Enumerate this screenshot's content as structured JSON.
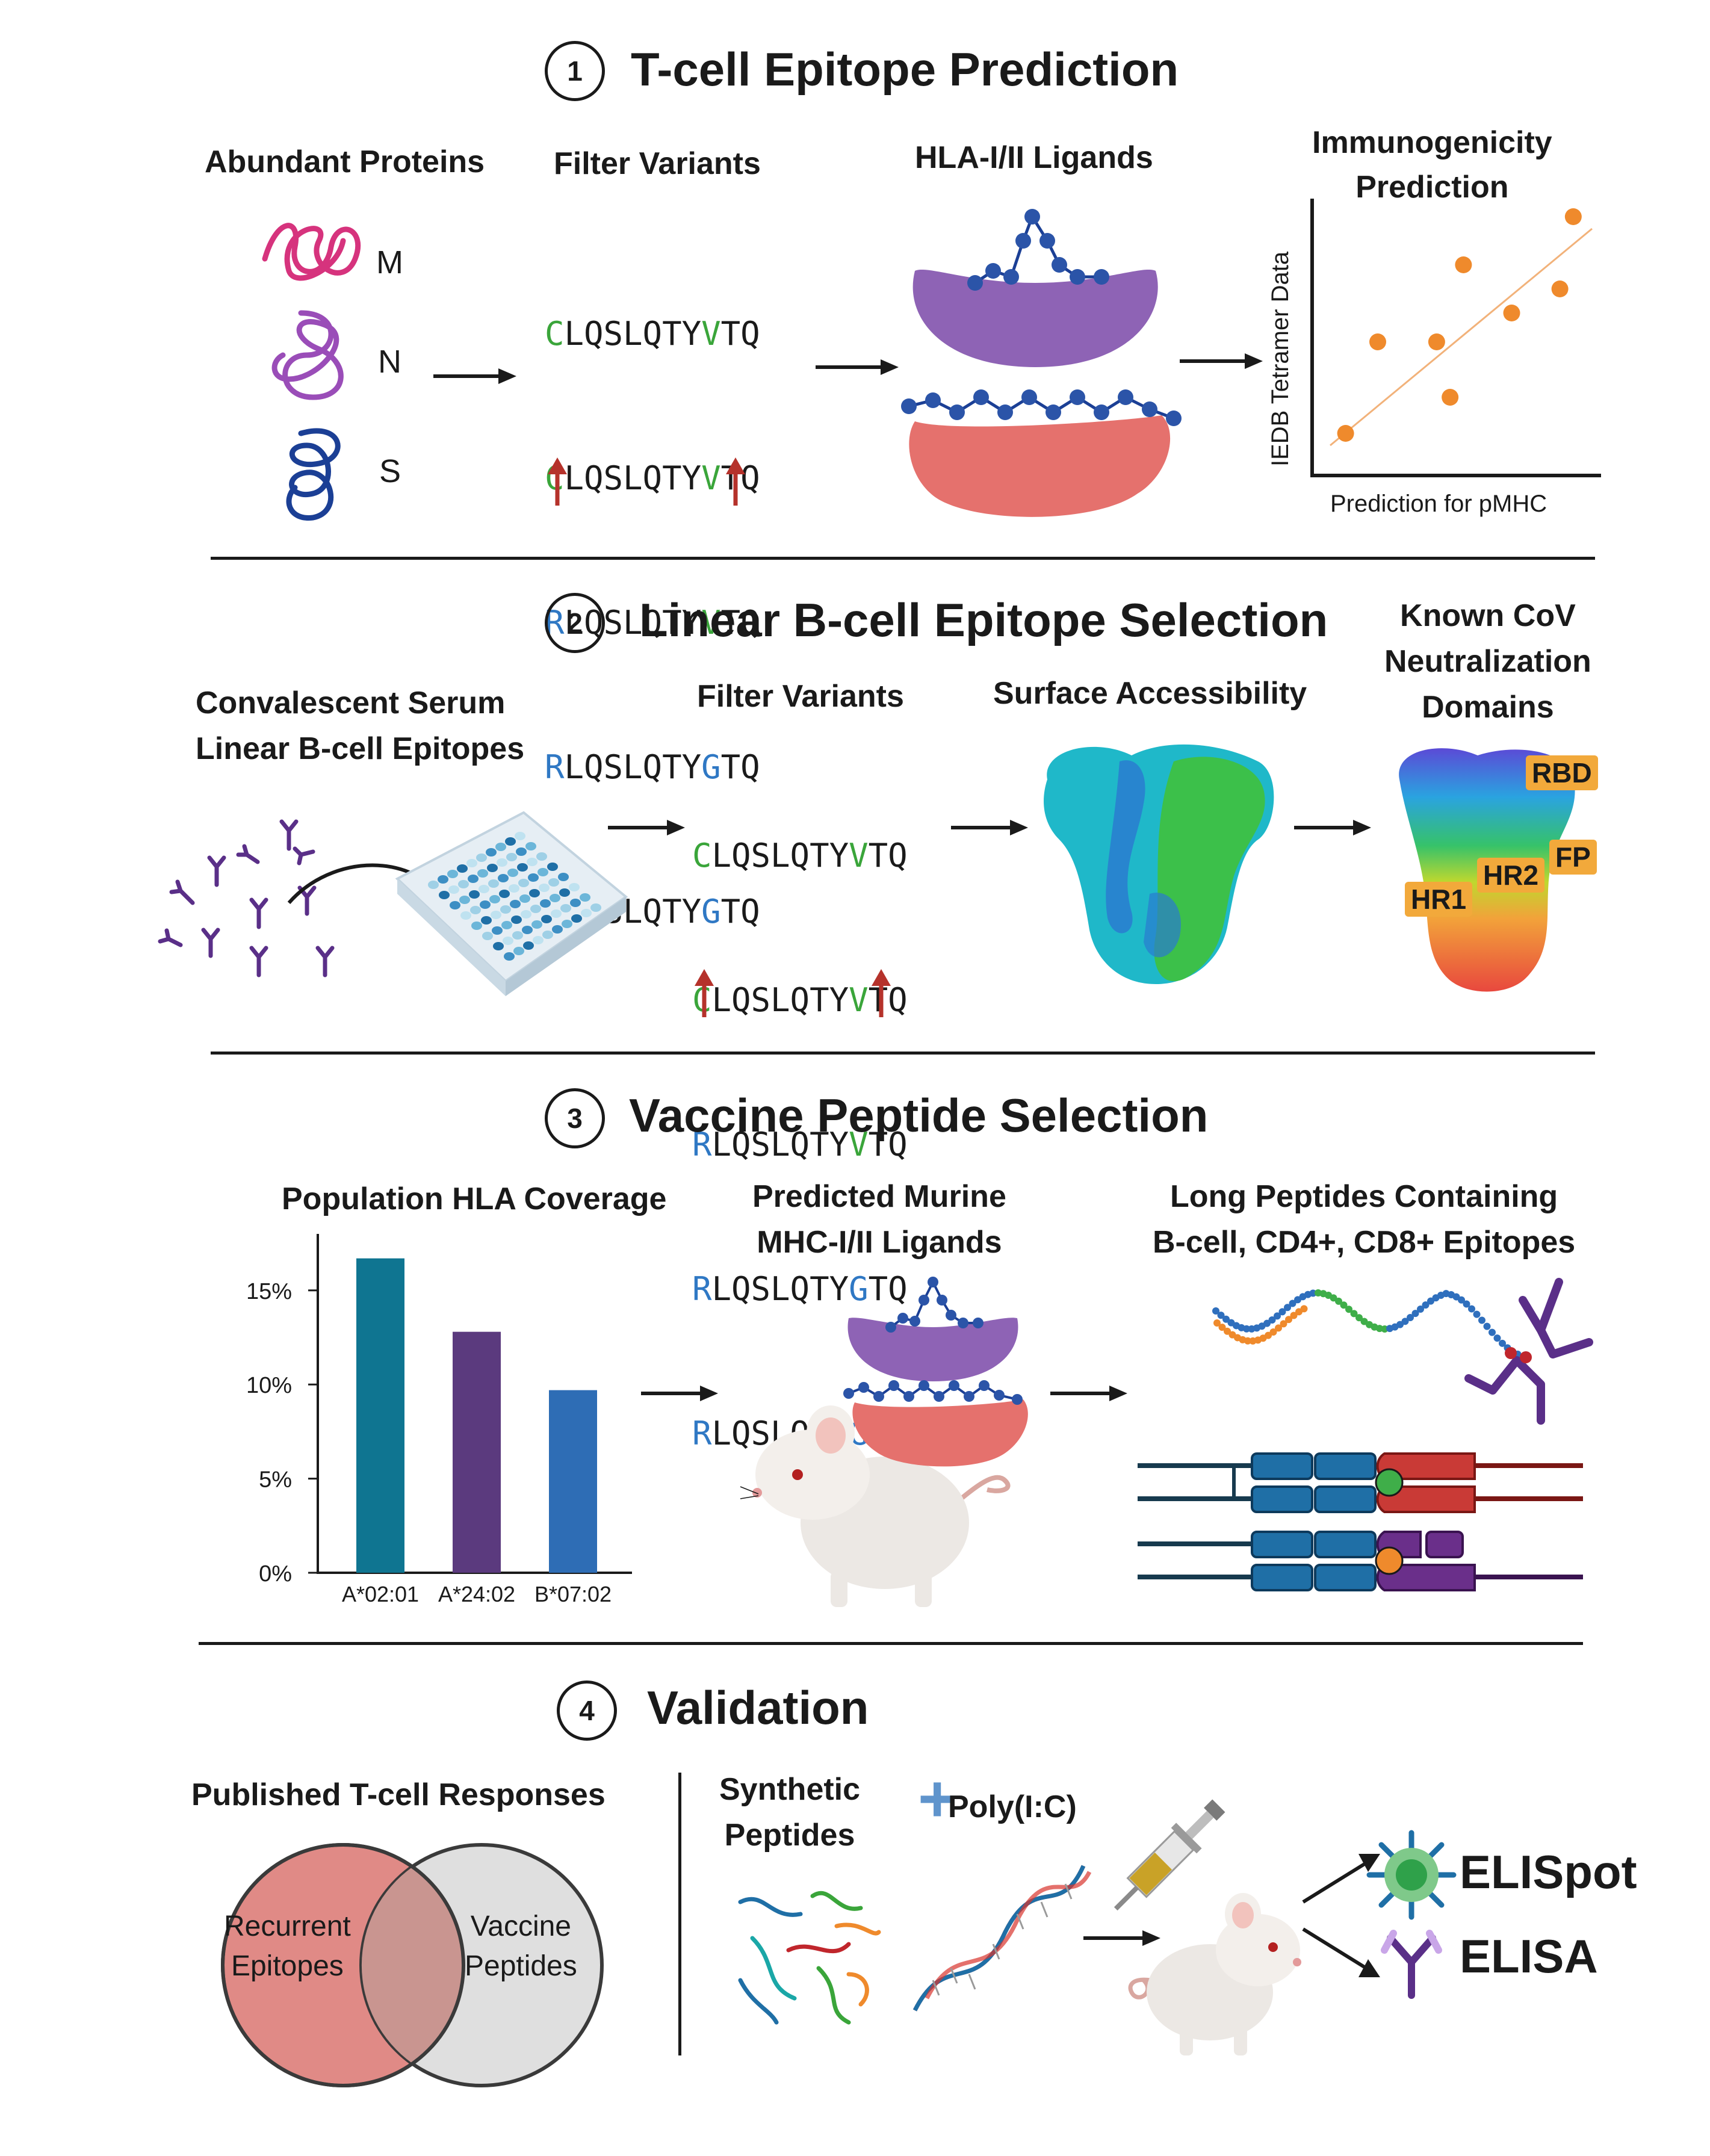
{
  "section1": {
    "number": "1",
    "title": "T-cell Epitope Prediction",
    "abundant_label": "Abundant Proteins",
    "proteins": [
      "M",
      "N",
      "S"
    ],
    "filter_label": "Filter Variants",
    "sequences": [
      {
        "first": "C",
        "mid": "LQSLQTY",
        "var": "V",
        "end": "TQ"
      },
      {
        "first": "C",
        "mid": "LQSLQTY",
        "var": "V",
        "end": "TQ"
      },
      {
        "first": "R",
        "mid": "LQSLQTY",
        "var": "V",
        "end": "TQ"
      },
      {
        "first": "R",
        "mid": "LQSLQTY",
        "var": "G",
        "end": "TQ"
      },
      {
        "first": "R",
        "mid": "LQSLQTY",
        "var": "G",
        "end": "TQ"
      }
    ],
    "ligands_label": "HLA-I/II Ligands",
    "immuno_label_1": "Immunogenicity",
    "immuno_label_2": "Prediction",
    "y_axis": "IEDB Tetramer Data",
    "x_axis": "Prediction for pMHC"
  },
  "chart_data": [
    {
      "type": "scatter",
      "title": "Immunogenicity Prediction",
      "xlabel": "Prediction for pMHC",
      "ylabel": "IEDB Tetramer Data",
      "points": [
        [
          0.08,
          0.1
        ],
        [
          0.2,
          0.48
        ],
        [
          0.42,
          0.48
        ],
        [
          0.47,
          0.25
        ],
        [
          0.52,
          0.8
        ],
        [
          0.7,
          0.6
        ],
        [
          0.88,
          0.7
        ],
        [
          0.93,
          1.0
        ]
      ],
      "trendline": true
    },
    {
      "type": "bar",
      "title": "Population HLA Coverage",
      "categories": [
        "A*02:01",
        "A*24:02",
        "B*07:02"
      ],
      "values": [
        16.7,
        12.8,
        9.7
      ],
      "colors": [
        "#0f7591",
        "#5b3a7e",
        "#2e6db5"
      ],
      "yticks": [
        "0%",
        "5%",
        "10%",
        "15%"
      ],
      "ylim": [
        0,
        18
      ]
    }
  ],
  "section2": {
    "number": "2",
    "title": "Linear B-cell Epitope Selection",
    "serum_label_1": "Convalescent Serum",
    "serum_label_2": "Linear B-cell Epitopes",
    "filter_label": "Filter Variants",
    "surface_label": "Surface Accessibility",
    "known_label_1": "Known CoV",
    "known_label_2": "Neutralization",
    "known_label_3": "Domains",
    "domains": [
      "RBD",
      "FP",
      "HR2",
      "HR1"
    ]
  },
  "section3": {
    "number": "3",
    "title": "Vaccine Peptide Selection",
    "coverage_label": "Population HLA Coverage",
    "murine_label_1": "Predicted Murine",
    "murine_label_2": "MHC-I/II Ligands",
    "long_label_1": "Long Peptides Containing",
    "long_label_2": "B-cell, CD4+, CD8+ Epitopes"
  },
  "section4": {
    "number": "4",
    "title": "Validation",
    "published_label": "Published T-cell Responses",
    "venn_left_1": "Recurrent",
    "venn_left_2": "Epitopes",
    "venn_right_1": "Vaccine",
    "venn_right_2": "Peptides",
    "synthetic_1": "Synthetic",
    "synthetic_2": "Peptides",
    "plus": "+",
    "polyic": "Poly(I:C)",
    "elispot": "ELISpot",
    "elisa": "ELISA"
  },
  "colors": {
    "green_residue": "#3aa53a",
    "blue_residue": "#2f78c4",
    "red_arrow": "#b5322b",
    "scatter_orange": "#ef8a2c",
    "mhc_purple": "#8e63b5",
    "mhc_red": "#e5716d"
  }
}
